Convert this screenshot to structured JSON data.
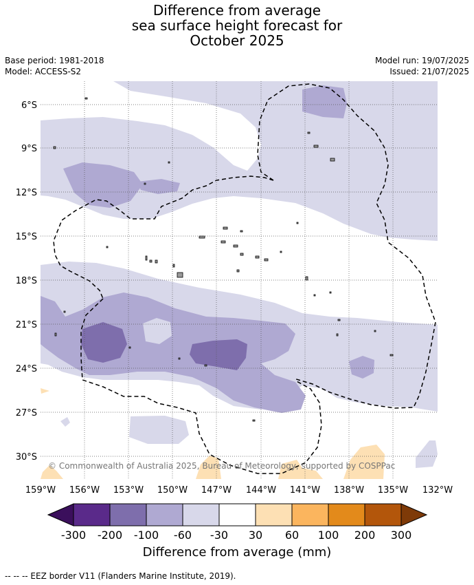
{
  "title_lines": [
    "Difference from average",
    "sea surface height forecast for",
    "October 2025"
  ],
  "meta": {
    "base_period": "Base period: 1981-2018",
    "model": "Model: ACCESS-S2",
    "model_run": "Model run: 19/07/2025",
    "issued": "Issued: 21/07/2025"
  },
  "copyright": "© Commonwealth of Australia 2025, Bureau of Meteorology, supported by COSPPac",
  "colorbar": {
    "title": "Difference from average (mm)",
    "ticks": [
      "-300",
      "-200",
      "-100",
      "-60",
      "-30",
      "30",
      "60",
      "100",
      "200",
      "300"
    ],
    "colors": {
      "below_min": "#3b0f5c",
      "-300_-200": "#5a2a8a",
      "-200_-100": "#7e6eac",
      "-100_-60": "#afa9d2",
      "-60_-30": "#d8d8ea",
      "-30_30": "#ffffff",
      "30_60": "#fde0b4",
      "60_100": "#fbb55e",
      "100_200": "#e38a1b",
      "200_300": "#b3560b",
      "above_max": "#7e3a08"
    }
  },
  "footer": "--  --  -- EEZ border V11 (Flanders Marine Institute, 2019).",
  "map": {
    "lon_labels": [
      "159°W",
      "156°W",
      "153°W",
      "150°W",
      "147°W",
      "144°W",
      "141°W",
      "138°W",
      "135°W",
      "132°W"
    ],
    "lat_labels": [
      "6°S",
      "9°S",
      "12°S",
      "15°S",
      "18°S",
      "21°S",
      "24°S",
      "27°S",
      "30°S"
    ],
    "lon_range": [
      -159,
      -132
    ],
    "lat_range": [
      -31.5,
      -4.5
    ],
    "gridlines": true
  }
}
